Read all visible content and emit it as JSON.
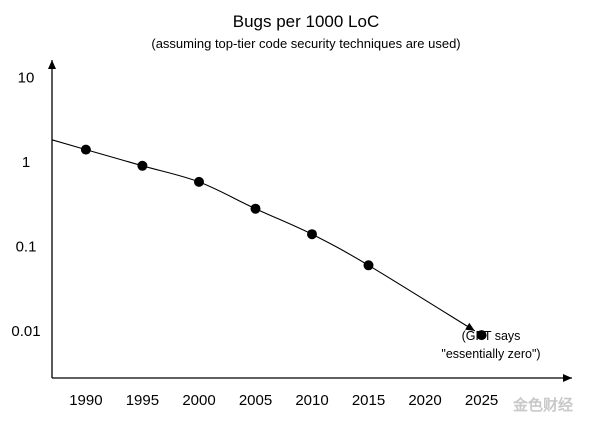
{
  "chart_data": {
    "type": "scatter",
    "title": "Bugs per 1000 LoC",
    "subtitle": "(assuming top-tier code security techniques are used)",
    "xlabel": "",
    "ylabel": "",
    "yscale": "log",
    "xlim": [
      1987,
      2033
    ],
    "ylim": [
      0.0028,
      16
    ],
    "grid": false,
    "x_ticks": [
      "1990",
      "1995",
      "2000",
      "2005",
      "2010",
      "2015",
      "2020",
      "2025"
    ],
    "y_ticks": [
      "10",
      "1",
      "0.1",
      "0.01"
    ],
    "series": [
      {
        "x": [
          1990,
          1995,
          2000,
          2005,
          2010,
          2015,
          2025
        ],
        "y": [
          1.4,
          0.9,
          0.58,
          0.28,
          0.14,
          0.06,
          0.009
        ]
      }
    ],
    "annotation": {
      "line1": "(GPT says",
      "line2": "\"essentially zero\")"
    }
  },
  "watermark": "金色财经",
  "colors": {
    "ink": "#000000",
    "background": "#ffffff",
    "watermark": "#c9c9c9"
  }
}
